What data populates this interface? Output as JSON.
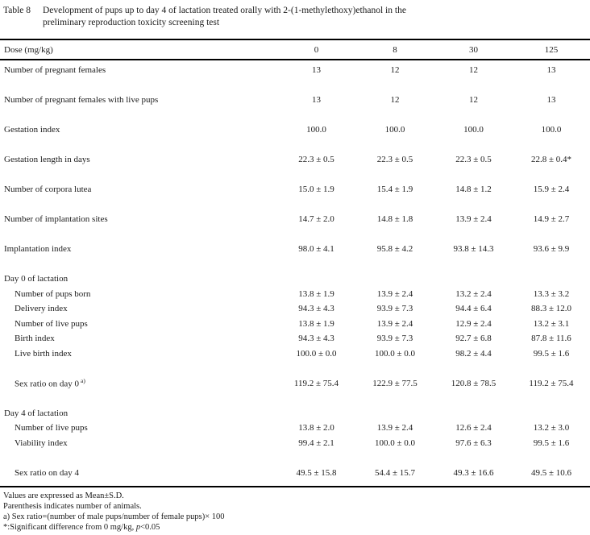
{
  "caption": {
    "tag": "Table 8",
    "line1": "Development of pups up to day 4 of lactation treated orally with 2-(1-methylethoxy)ethanol in the",
    "line2": "preliminary reproduction toxicity screening test"
  },
  "table": {
    "header": {
      "label": "Dose (mg/kg)",
      "columns": [
        "0",
        "8",
        "30",
        "125"
      ]
    },
    "rows": [
      {
        "label": "Number of pregnant females",
        "values": [
          "13",
          "12",
          "12",
          "13"
        ]
      },
      {
        "label": "Number of pregnant females with live pups",
        "values": [
          "13",
          "12",
          "12",
          "13"
        ]
      },
      {
        "label": "Gestation index",
        "values": [
          "100.0",
          "100.0",
          "100.0",
          "100.0"
        ]
      },
      {
        "label": "Gestation length in days",
        "values": [
          "22.3 ± 0.5",
          "22.3 ± 0.5",
          "22.3 ± 0.5",
          "22.8 ± 0.4*"
        ]
      },
      {
        "label": "Number of corpora lutea",
        "values": [
          "15.0 ± 1.9",
          "15.4 ± 1.9",
          "14.8 ± 1.2",
          "15.9 ± 2.4"
        ]
      },
      {
        "label": "Number of implantation sites",
        "values": [
          "14.7 ± 2.0",
          "14.8 ± 1.8",
          "13.9 ± 2.4",
          "14.9 ± 2.7"
        ]
      },
      {
        "label": "Implantation index",
        "values": [
          "98.0 ± 4.1",
          "95.8 ± 4.2",
          "93.8 ± 14.3",
          "93.6 ± 9.9"
        ]
      },
      {
        "label": "Day 0 of lactation",
        "values": [
          "",
          "",
          "",
          ""
        ]
      },
      {
        "label": "Number of pups born",
        "values": [
          "13.8 ± 1.9",
          "13.9 ± 2.4",
          "13.2 ± 2.4",
          "13.3 ± 3.2"
        ]
      },
      {
        "label": "Delivery index",
        "values": [
          "94.3 ± 4.3",
          "93.9 ± 7.3",
          "94.4 ± 6.4",
          "88.3 ± 12.0"
        ]
      },
      {
        "label": "Number of live pups",
        "values": [
          "13.8 ± 1.9",
          "13.9 ± 2.4",
          "12.9 ± 2.4",
          "13.2 ± 3.1"
        ]
      },
      {
        "label": "Birth index",
        "values": [
          "94.3 ± 4.3",
          "93.9 ± 7.3",
          "92.7 ± 6.8",
          "87.8 ± 11.6"
        ]
      },
      {
        "label": "Live birth index",
        "values": [
          "100.0 ± 0.0",
          "100.0 ± 0.0",
          "98.2 ± 4.4",
          "99.5 ± 1.6"
        ]
      },
      {
        "label": "Sex ratio on day 0",
        "sup": "a)",
        "values": [
          "119.2 ± 75.4",
          "122.9 ± 77.5",
          "120.8 ± 78.5",
          "119.2 ± 75.4"
        ]
      },
      {
        "label": "Day 4 of lactation",
        "values": [
          "",
          "",
          "",
          ""
        ]
      },
      {
        "label": "Number of live pups",
        "values": [
          "13.8 ± 2.0",
          "13.9 ± 2.4",
          "12.6 ± 2.4",
          "13.2 ± 3.0"
        ]
      },
      {
        "label": "Viability index",
        "values": [
          "99.4 ± 2.1",
          "100.0 ± 0.0",
          "97.6 ± 6.3",
          "99.5 ± 1.6"
        ]
      },
      {
        "label": "Sex ratio on day 4",
        "values": [
          "49.5 ± 15.8",
          "54.4 ± 15.7",
          "49.3 ± 16.6",
          "49.5 ± 10.6"
        ]
      }
    ]
  },
  "footnotes": {
    "line1": "Values are expressed as Mean±S.D.",
    "line2": "Parenthesis indicates number of animals.",
    "line3": "a) Sex ratio=(number of male pups/number of female pups)× 100",
    "line4_prefix": "*:Significant difference from 0 mg/kg, ",
    "line4_italic": "p",
    "line4_suffix": "<0.05"
  }
}
